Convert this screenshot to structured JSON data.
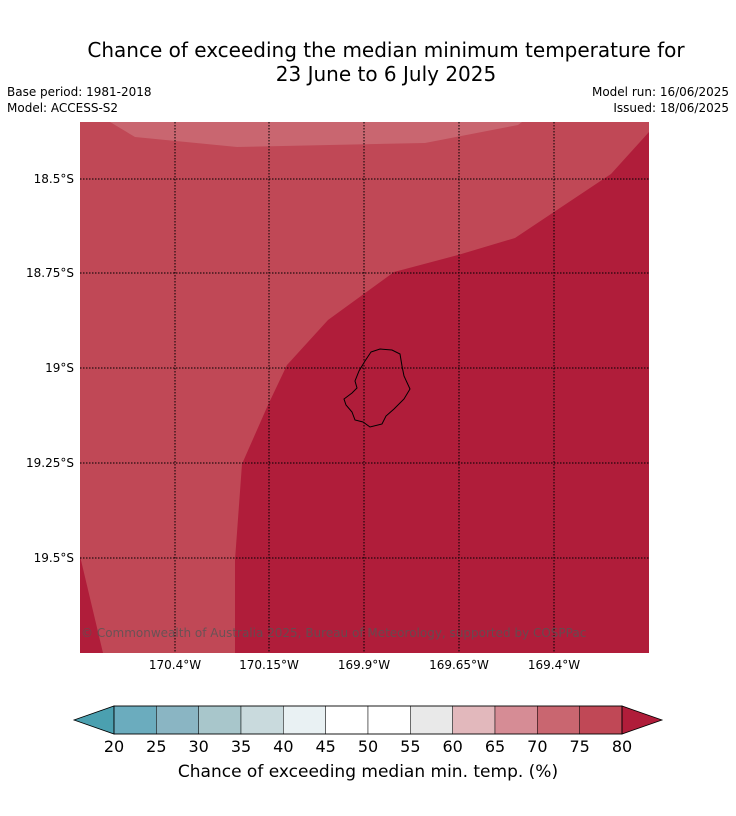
{
  "title_line1": "Chance of exceeding the median minimum temperature for",
  "title_line2": "23 June to 6 July 2025",
  "meta_left": {
    "base_period": "Base period: 1981-2018",
    "model": "Model: ACCESS-S2"
  },
  "meta_right": {
    "model_run": "Model run: 16/06/2025",
    "issued": "Issued: 18/06/2025"
  },
  "map": {
    "lat_labels": [
      "18.5°S",
      "18.75°S",
      "19°S",
      "19.25°S",
      "19.5°S"
    ],
    "lon_labels": [
      "170.4°W",
      "170.15°W",
      "169.9°W",
      "169.65°W",
      "169.4°W"
    ],
    "copyright": "© Commonwealth of Australia 2025, Bureau of Meteorology, supported by COSPPac",
    "region_colors": {
      "band_70_75": "#c96670",
      "band_75_80": "#c04856",
      "band_80_plus": "#b01d3a"
    }
  },
  "colorbar": {
    "ticks": [
      "20",
      "25",
      "30",
      "35",
      "40",
      "45",
      "50",
      "55",
      "60",
      "65",
      "70",
      "75",
      "80"
    ],
    "colors": [
      "#4ba0b0",
      "#6bacbe",
      "#8ab5c3",
      "#a8c6cb",
      "#c9dadd",
      "#e9f1f3",
      "#ffffff",
      "#ffffff",
      "#e9e9e9",
      "#e2b8bc",
      "#d68c95",
      "#c96670",
      "#c04856",
      "#b01d3a"
    ],
    "label": "Chance of exceeding median min. temp. (%)"
  }
}
